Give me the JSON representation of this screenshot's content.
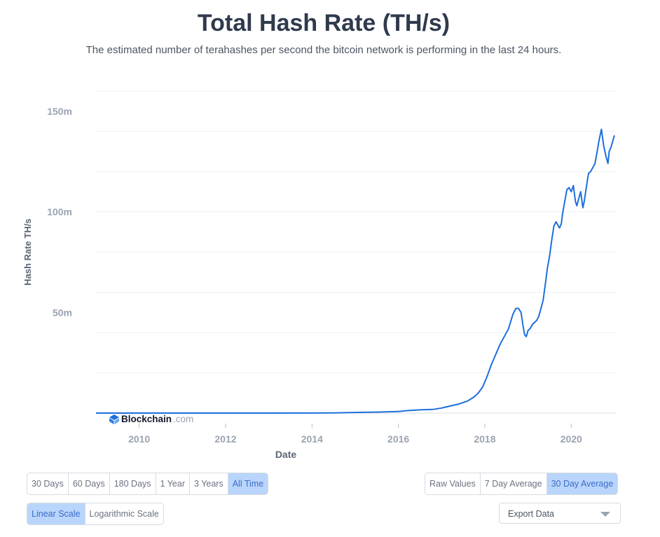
{
  "page": {
    "title": "Total Hash Rate (TH/s)",
    "subtitle": "The estimated number of terahashes per second the bitcoin network is performing in the last 24 hours."
  },
  "brand": {
    "name": "Blockchain",
    "suffix": ".com"
  },
  "chart_data": {
    "type": "line",
    "title": "Total Hash Rate (TH/s)",
    "xlabel": "Date",
    "ylabel": "Hash Rate TH/s",
    "x_ticks": [
      "2010",
      "2012",
      "2014",
      "2016",
      "2018",
      "2020"
    ],
    "y_ticks": [
      "50m",
      "100m",
      "150m"
    ],
    "xlim": [
      2009.0,
      2021.05
    ],
    "ylim": [
      0,
      160
    ],
    "y_units": "million TH/s",
    "grid": true,
    "line_color": "#1d6fdc",
    "series": [
      {
        "x": [
          2009.0,
          2010.0,
          2011.0,
          2012.0,
          2013.0,
          2014.0,
          2014.5,
          2015.0,
          2015.5,
          2016.0,
          2016.2,
          2016.5,
          2016.8,
          2017.0,
          2017.2,
          2017.4,
          2017.6,
          2017.75,
          2017.85,
          2017.95,
          2018.05,
          2018.15,
          2018.25,
          2018.35,
          2018.45,
          2018.55,
          2018.65,
          2018.72,
          2018.78,
          2018.84,
          2018.88,
          2018.92,
          2018.96,
          2019.0,
          2019.05,
          2019.1,
          2019.15,
          2019.2,
          2019.25,
          2019.3,
          2019.35,
          2019.4,
          2019.45,
          2019.5,
          2019.55,
          2019.6,
          2019.65,
          2019.7,
          2019.73,
          2019.77,
          2019.8,
          2019.85,
          2019.9,
          2019.95,
          2020.0,
          2020.05,
          2020.1,
          2020.13,
          2020.18,
          2020.22,
          2020.27,
          2020.3,
          2020.35,
          2020.4,
          2020.45,
          2020.5,
          2020.55,
          2020.6,
          2020.65,
          2020.7,
          2020.75,
          2020.8,
          2020.85,
          2020.88,
          2020.92,
          2020.96,
          2021.0
        ],
        "y": [
          0,
          0,
          0,
          0,
          0,
          0.05,
          0.1,
          0.3,
          0.5,
          0.8,
          1.2,
          1.6,
          1.8,
          2.5,
          3.5,
          4.5,
          6,
          8,
          10,
          13,
          18,
          24,
          29,
          34,
          38,
          42,
          49,
          52,
          52,
          50,
          44,
          39,
          38,
          41,
          42,
          44,
          45,
          46,
          48,
          52,
          56,
          64,
          72,
          78,
          86,
          93,
          95,
          93,
          92,
          94,
          99,
          105,
          111,
          112,
          110,
          113,
          105,
          103,
          107,
          110,
          102,
          105,
          112,
          119,
          120,
          122,
          124,
          130,
          136,
          141,
          133,
          128,
          124,
          130,
          132,
          135,
          138
        ]
      }
    ]
  },
  "controls": {
    "range_buttons": [
      {
        "label": "30 Days",
        "active": false
      },
      {
        "label": "60 Days",
        "active": false
      },
      {
        "label": "180 Days",
        "active": false
      },
      {
        "label": "1 Year",
        "active": false
      },
      {
        "label": "3 Years",
        "active": false
      },
      {
        "label": "All Time",
        "active": true
      }
    ],
    "smoothing_buttons": [
      {
        "label": "Raw Values",
        "active": false
      },
      {
        "label": "7 Day Average",
        "active": false
      },
      {
        "label": "30 Day Average",
        "active": true
      }
    ],
    "scale_buttons": [
      {
        "label": "Linear Scale",
        "active": true
      },
      {
        "label": "Logarithmic Scale",
        "active": false
      }
    ],
    "export_label": "Export Data"
  },
  "colors": {
    "accent": "#b9d5fb",
    "accent_text": "#3d6cc9",
    "title": "#2f3a4d"
  }
}
